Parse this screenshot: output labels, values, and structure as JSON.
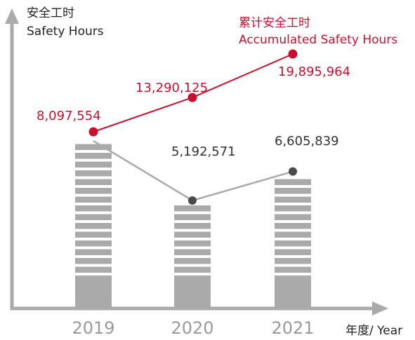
{
  "chart_data": {
    "type": "bar",
    "categories": [
      "2019",
      "2020",
      "2021"
    ],
    "series": [
      {
        "name": "安全工时 Safety Hours",
        "values": [
          8097554,
          5192571,
          6605839
        ],
        "labels": [
          "8,097,554",
          "5,192,571",
          "6,605,839"
        ],
        "color": "#aaaaaa",
        "render": "bar+line"
      },
      {
        "name": "累计安全工时 Accumulated Safety Hours",
        "values": [
          8097554,
          13290125,
          19895964
        ],
        "labels": [
          "8,097,554",
          "13,290,125",
          "19,895,964"
        ],
        "color": "#c8102e",
        "render": "line"
      }
    ],
    "ylabel_cn": "安全工时",
    "ylabel_en": "Safety Hours",
    "legend_cn": "累计安全工时",
    "legend_en": "Accumulated Safety Hours",
    "xlabel": "年度/ Year",
    "grid": false
  },
  "colors": {
    "axis": "#aaaaaa",
    "bar": "#aaaaaa",
    "accent": "#c8102e",
    "gray_point": "#4a4a4a"
  }
}
